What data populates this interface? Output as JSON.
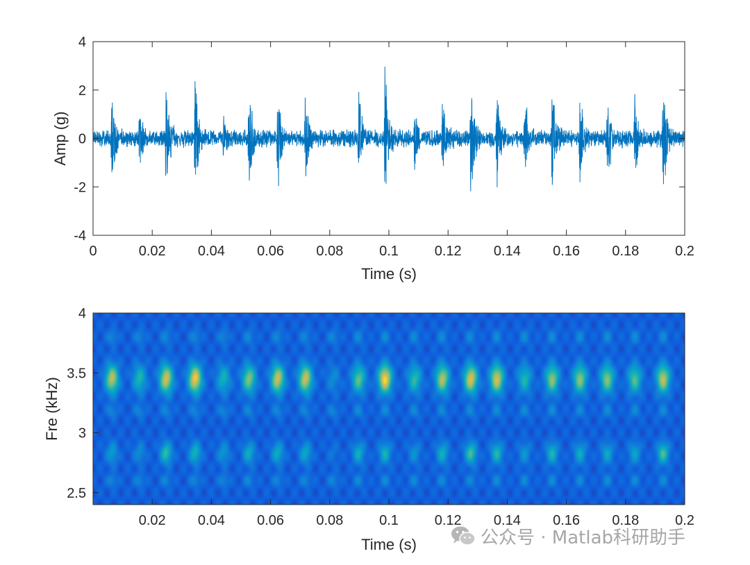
{
  "chart_data": [
    {
      "type": "line",
      "xlabel": "Time (s)",
      "ylabel": "Amp (g)",
      "xlim": [
        0,
        0.2
      ],
      "ylim": [
        -4,
        4
      ],
      "xticks": [
        0,
        0.02,
        0.04,
        0.06,
        0.08,
        0.1,
        0.12,
        0.14,
        0.16,
        0.18,
        0.2
      ],
      "xtick_labels": [
        "0",
        "0.02",
        "0.04",
        "0.06",
        "0.08",
        "0.1",
        "0.12",
        "0.14",
        "0.16",
        "0.18",
        "0.2"
      ],
      "yticks": [
        -4,
        -2,
        0,
        2,
        4
      ],
      "ytick_labels": [
        "-4",
        "-2",
        "0",
        "2",
        "4"
      ],
      "grid": false,
      "color": "#0072BD",
      "series": [
        {
          "impulse_times": [
            0.0064,
            0.0157,
            0.0247,
            0.0345,
            0.0441,
            0.0527,
            0.0624,
            0.0718,
            0.0812,
            0.0898,
            0.0987,
            0.1087,
            0.1181,
            0.1277,
            0.1365,
            0.1459,
            0.1552,
            0.1646,
            0.1738,
            0.1831,
            0.1927
          ],
          "impulse_peaks": [
            2.2,
            1.5,
            2.5,
            2.7,
            1.1,
            2.2,
            2.4,
            2.4,
            0.5,
            2.3,
            3.5,
            1.3,
            2.4,
            2.7,
            2.4,
            2.3,
            2.4,
            2.3,
            2.3,
            2.1,
            3.0
          ],
          "impulse_troughs": [
            -2.2,
            -1.3,
            -2.6,
            -2.8,
            -1.1,
            -2.3,
            -2.6,
            -2.3,
            -0.5,
            -2.1,
            -2.8,
            -1.5,
            -2.1,
            -2.6,
            -2.9,
            -1.6,
            -2.3,
            -2.3,
            -2.4,
            -2.4,
            -2.8
          ]
        }
      ]
    },
    {
      "type": "heatmap",
      "xlabel": "Time (s)",
      "ylabel": "Fre (kHz)",
      "xlim": [
        0,
        0.2
      ],
      "ylim": [
        2.4,
        4
      ],
      "xticks": [
        0.02,
        0.04,
        0.06,
        0.08,
        0.1,
        0.12,
        0.14,
        0.16,
        0.18,
        0.2
      ],
      "xtick_labels": [
        "0.02",
        "0.04",
        "0.06",
        "0.08",
        "0.1",
        "0.12",
        "0.14",
        "0.16",
        "0.18",
        "0.2"
      ],
      "yticks": [
        2.5,
        3,
        3.5,
        4
      ],
      "ytick_labels": [
        "2.5",
        "3",
        "3.5",
        "4"
      ],
      "colormap": "parula",
      "upper_band_khz": 3.45,
      "lower_band_khz": 2.83,
      "blob_times": [
        0.0064,
        0.0157,
        0.0247,
        0.0345,
        0.0441,
        0.0527,
        0.0624,
        0.0718,
        0.0812,
        0.0898,
        0.0987,
        0.1087,
        0.1181,
        0.1277,
        0.1365,
        0.1459,
        0.1552,
        0.1646,
        0.1738,
        0.1831,
        0.1927
      ],
      "upper_intensity": [
        0.82,
        0.48,
        0.88,
        0.97,
        0.45,
        0.7,
        0.86,
        0.86,
        0.22,
        0.62,
        1.0,
        0.52,
        0.8,
        0.9,
        0.88,
        0.48,
        0.72,
        0.72,
        0.7,
        0.6,
        0.82
      ],
      "lower_intensity": [
        0.35,
        0.25,
        0.58,
        0.5,
        0.32,
        0.45,
        0.45,
        0.42,
        0.12,
        0.45,
        0.48,
        0.28,
        0.47,
        0.62,
        0.52,
        0.3,
        0.5,
        0.43,
        0.4,
        0.38,
        0.62
      ]
    }
  ],
  "watermark": {
    "text": "公众号 · Matlab科研助手",
    "icon": "wechat-icon"
  }
}
